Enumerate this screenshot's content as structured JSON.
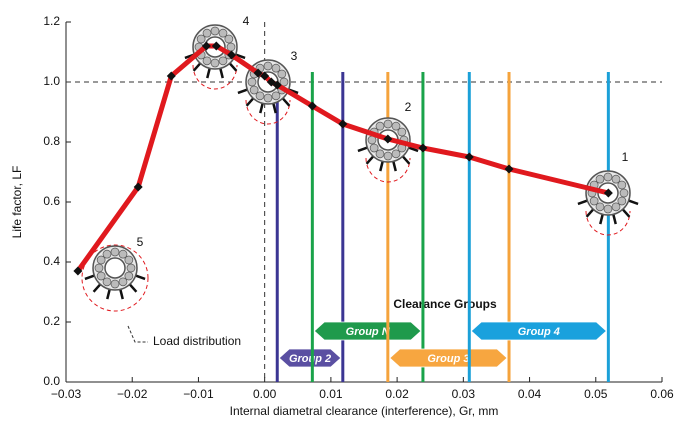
{
  "chart_data": {
    "type": "line",
    "x_label": "Internal diametral clearance (interference), Gr, mm",
    "y_label": "Life factor, LF",
    "xlim": [
      -0.03,
      0.06
    ],
    "ylim": [
      0,
      1.2
    ],
    "xticks": [
      {
        "value": -0.03,
        "label": "−0.03"
      },
      {
        "value": -0.02,
        "label": "−0.02"
      },
      {
        "value": -0.01,
        "label": "−0.01"
      },
      {
        "value": 0,
        "label": "0.00"
      },
      {
        "value": 0.01,
        "label": "0.01"
      },
      {
        "value": 0.02,
        "label": "0.02"
      },
      {
        "value": 0.03,
        "label": "0.03"
      },
      {
        "value": 0.04,
        "label": "0.04"
      },
      {
        "value": 0.05,
        "label": "0.05"
      },
      {
        "value": 0.06,
        "label": "0.06"
      }
    ],
    "yticks": [
      {
        "value": 0,
        "label": "0.0"
      },
      0.2,
      0.4,
      0.6,
      0.8,
      {
        "value": 1,
        "label": "1.0"
      },
      1.2
    ],
    "reference_y": 1,
    "reference_x": 0,
    "x": [
      -0.0282,
      -0.0191,
      -0.0141,
      -0.0088,
      -0.0073,
      -0.005,
      -0.001,
      0.0,
      0.001,
      0.0019,
      0.0072,
      0.0118,
      0.0186,
      0.0239,
      0.0309,
      0.0369,
      0.0519
    ],
    "series": [
      {
        "name": "Life factor",
        "color": "#e0191e",
        "values": [
          0.37,
          0.65,
          1.02,
          1.12,
          1.12,
          1.09,
          1.03,
          1.02,
          1.0,
          0.99,
          0.92,
          0.86,
          0.81,
          0.78,
          0.75,
          0.71,
          0.63
        ]
      }
    ],
    "groups_title": "Clearance Groups",
    "groups": [
      {
        "name": "Group 2",
        "range": [
          0.0019,
          0.0118
        ],
        "color": "#3b3593",
        "fill": "#5a4fa2"
      },
      {
        "name": "Group N",
        "range": [
          0.0072,
          0.0239
        ],
        "color": "#1aa34a",
        "fill": "#1f9a4c"
      },
      {
        "name": "Group 3",
        "range": [
          0.0186,
          0.0369
        ],
        "color": "#f5a33c",
        "fill": "#f7a640"
      },
      {
        "name": "Group 4",
        "range": [
          0.0309,
          0.0519
        ],
        "color": "#1ba0d8",
        "fill": "#1aa1dd"
      }
    ],
    "bearing_labels": [
      "1",
      "2",
      "3",
      "4",
      "5"
    ],
    "annotation": "Load distribution"
  }
}
